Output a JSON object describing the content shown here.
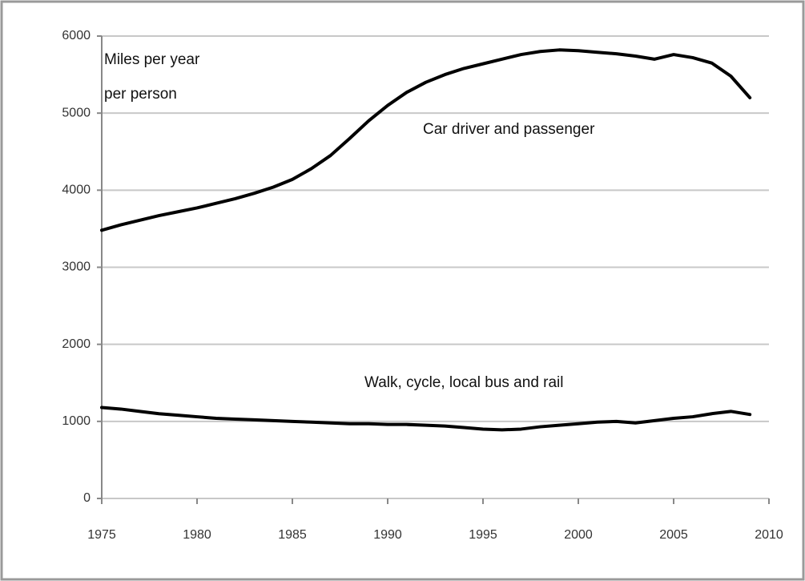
{
  "chart_data": {
    "type": "line",
    "annotations": [
      "Miles per year",
      "per person"
    ],
    "x": [
      1975,
      1976,
      1977,
      1978,
      1979,
      1980,
      1981,
      1982,
      1983,
      1984,
      1985,
      1986,
      1987,
      1988,
      1989,
      1990,
      1991,
      1992,
      1993,
      1994,
      1995,
      1996,
      1997,
      1998,
      1999,
      2000,
      2001,
      2002,
      2003,
      2004,
      2005,
      2006,
      2007,
      2008,
      2009
    ],
    "series": [
      {
        "name": "Car driver and passenger",
        "color": "#000000",
        "values": [
          3480,
          3550,
          3610,
          3670,
          3720,
          3770,
          3830,
          3890,
          3960,
          4040,
          4140,
          4280,
          4450,
          4670,
          4900,
          5100,
          5270,
          5400,
          5500,
          5580,
          5640,
          5700,
          5760,
          5800,
          5820,
          5810,
          5790,
          5770,
          5740,
          5700,
          5760,
          5720,
          5650,
          5480,
          5200
        ]
      },
      {
        "name": "Walk, cycle, local bus and rail",
        "color": "#000000",
        "values": [
          1180,
          1160,
          1130,
          1100,
          1080,
          1060,
          1040,
          1030,
          1020,
          1010,
          1000,
          990,
          980,
          970,
          970,
          960,
          960,
          950,
          940,
          920,
          900,
          890,
          900,
          930,
          950,
          970,
          990,
          1000,
          980,
          1010,
          1040,
          1060,
          1100,
          1130,
          1090
        ]
      }
    ],
    "xlim": [
      1975,
      2010
    ],
    "xticks": [
      1975,
      1980,
      1985,
      1990,
      1995,
      2000,
      2005,
      2010
    ],
    "ylim": [
      0,
      6000
    ],
    "yticks": [
      0,
      1000,
      2000,
      3000,
      4000,
      5000,
      6000
    ],
    "grid": true
  }
}
